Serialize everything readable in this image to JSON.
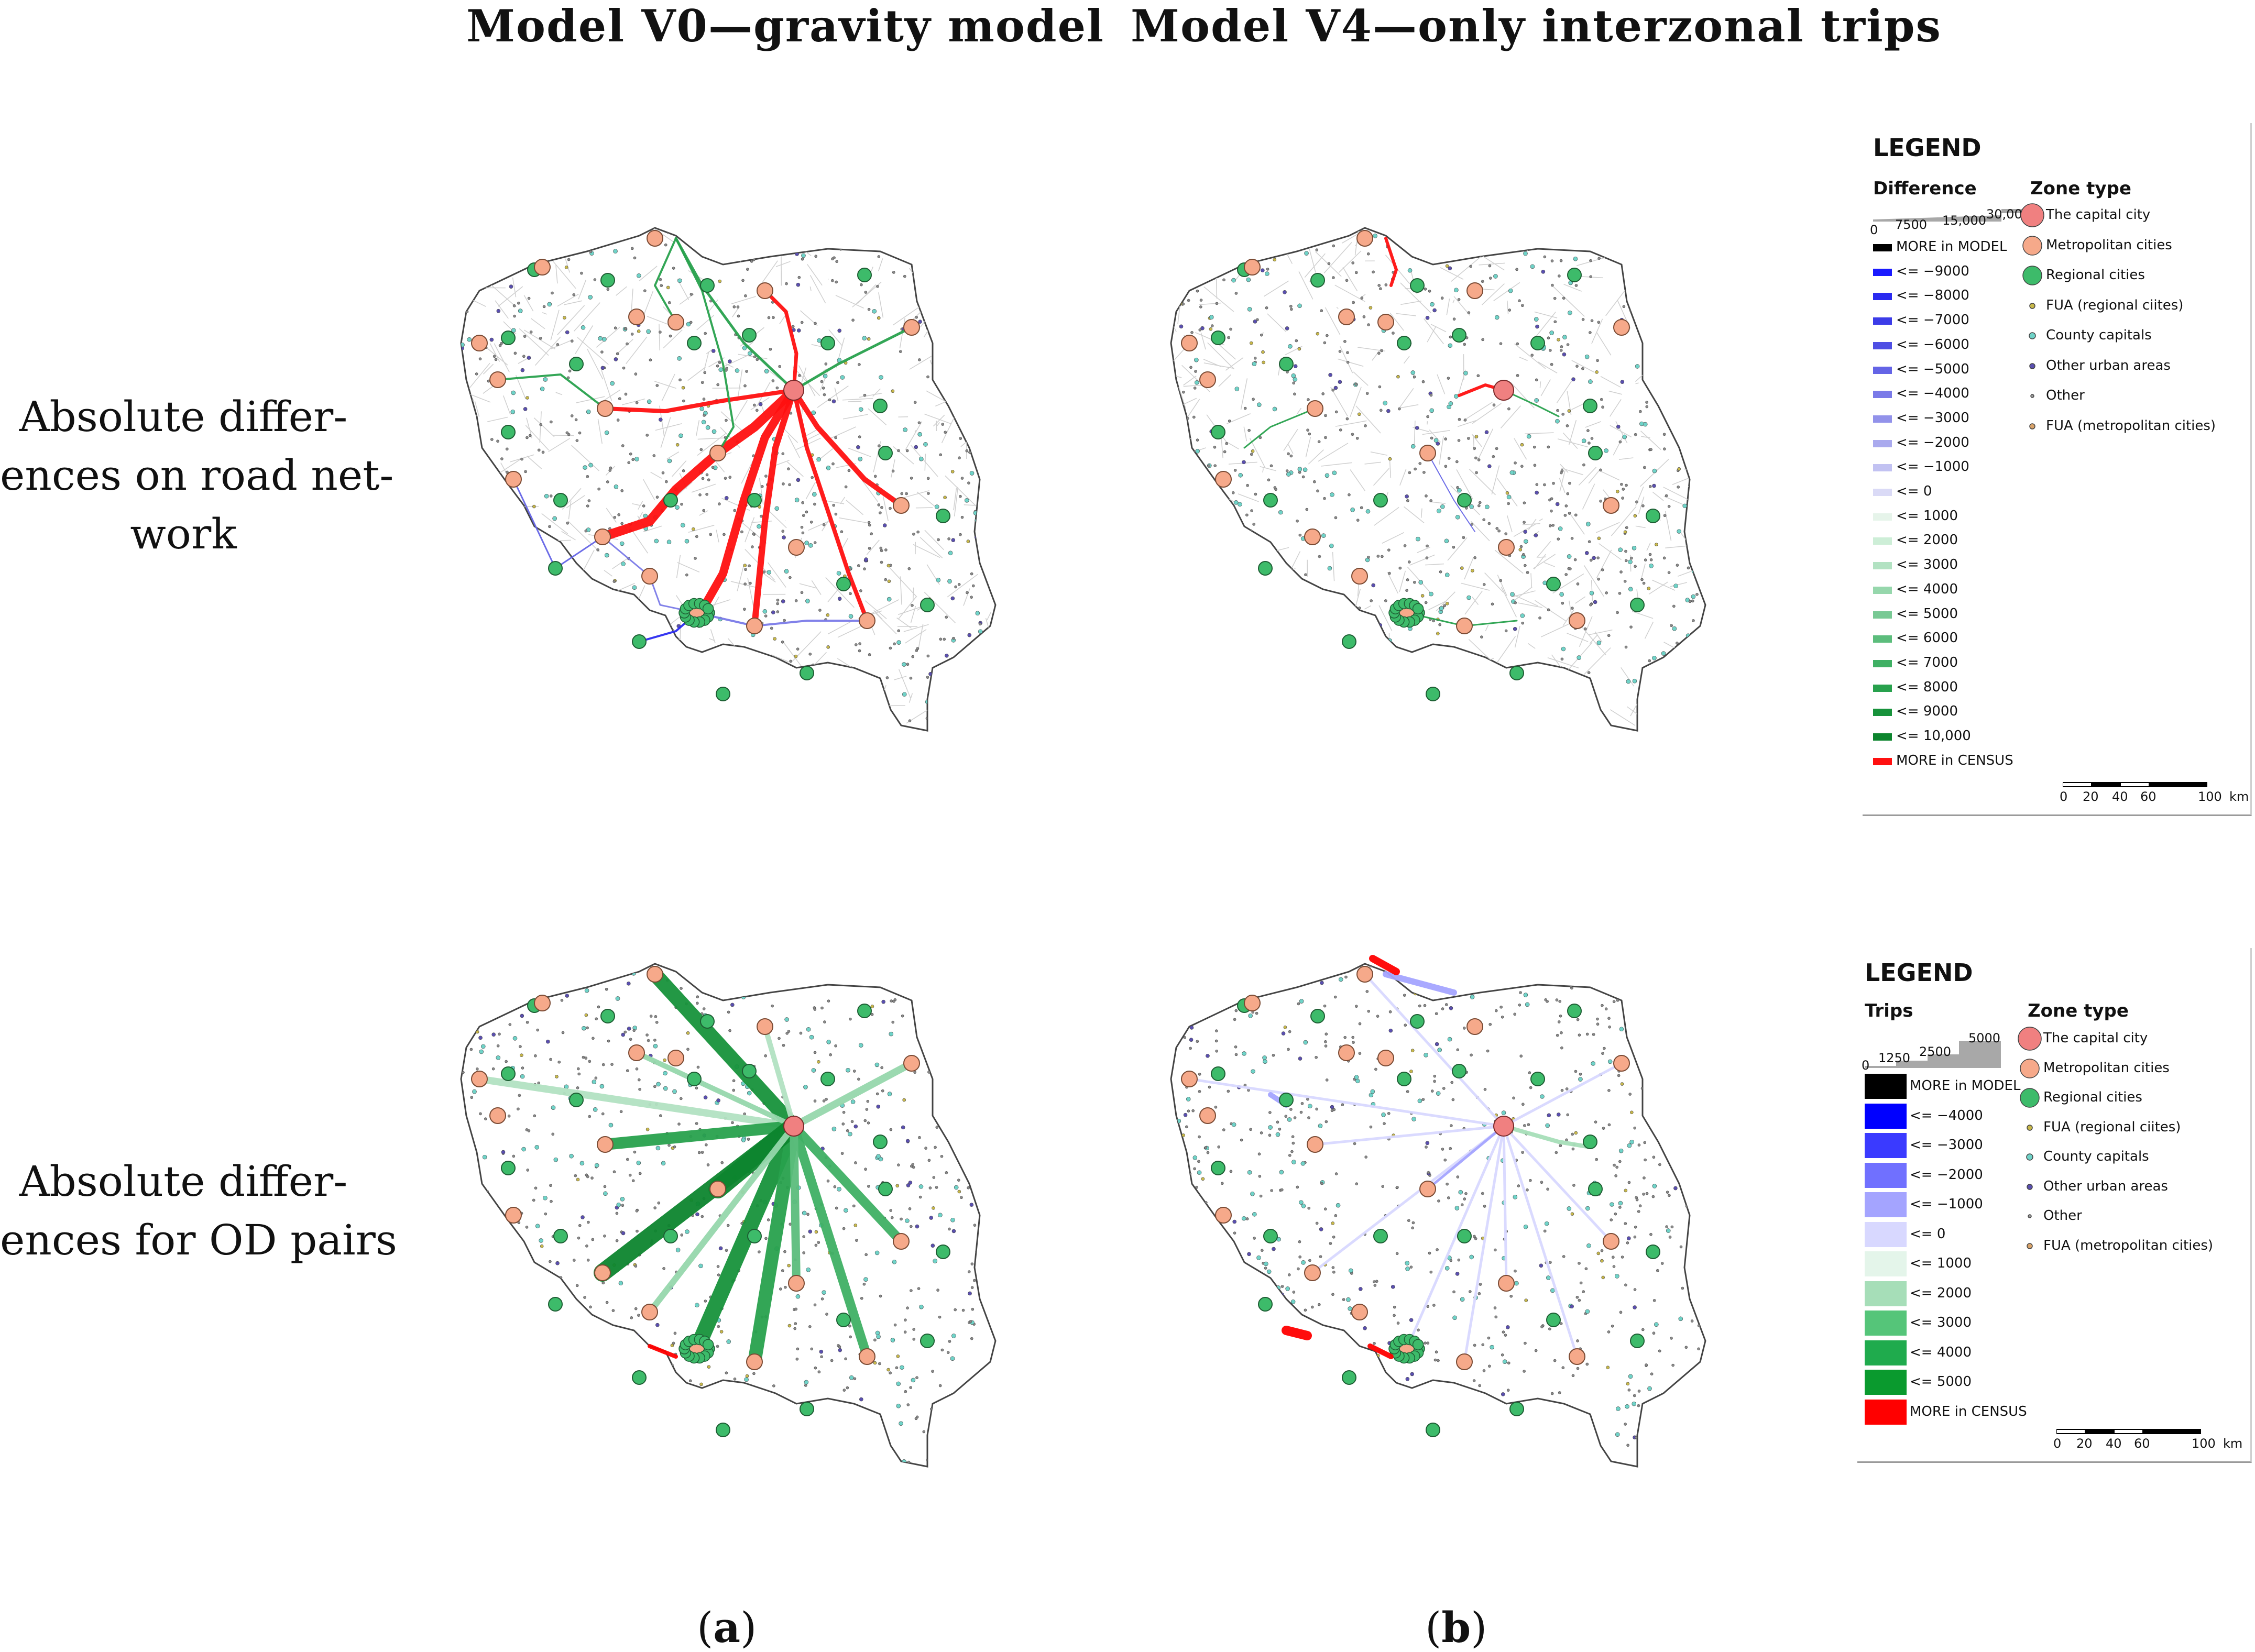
{
  "column_titles": [
    "Model V0—gravity model",
    "Model V4—only interzonal trips"
  ],
  "row_labels": [
    [
      "Absolute differ-",
      "ences on road net-",
      "work"
    ],
    [
      "Absolute differ-",
      "ences for OD pairs"
    ]
  ],
  "captions": {
    "a": "a",
    "b": "b"
  },
  "legend_top": {
    "title": "LEGEND",
    "difference_header": "Difference",
    "scale_ticks": [
      "0",
      "7500",
      "15,000",
      "30,000"
    ],
    "classes": [
      "MORE in MODEL",
      "<= −9000",
      "<= −8000",
      "<= −7000",
      "<= −6000",
      "<= −5000",
      "<= −4000",
      "<= −3000",
      "<= −2000",
      "<= −1000",
      "<= 0",
      "<= 1000",
      "<= 2000",
      "<= 3000",
      "<= 4000",
      "<= 5000",
      "<= 6000",
      "<= 7000",
      "<= 8000",
      "<= 9000",
      "<= 10,000",
      "MORE in CENSUS"
    ],
    "class_colors": [
      "#000000",
      "#1a1aff",
      "#2b2bf0",
      "#3c3ce8",
      "#4f4fe4",
      "#6464e6",
      "#7a7ae8",
      "#9292ea",
      "#aaaaee",
      "#c2c2f2",
      "#dadaf6",
      "#e6f4ea",
      "#cdeed7",
      "#b2e2c2",
      "#96d7ac",
      "#78c994",
      "#5cbd7c",
      "#3fb064",
      "#28a14d",
      "#17923b",
      "#0d852e",
      "#ff1010"
    ],
    "zone_header": "Zone type",
    "scale_bar": [
      "0",
      "20",
      "40",
      "60",
      "100",
      "km"
    ]
  },
  "legend_bottom": {
    "title": "LEGEND",
    "trips_header": "Trips",
    "scale_ticks": [
      "0",
      "1250",
      "2500",
      "5000"
    ],
    "classes": [
      "MORE in MODEL",
      "<= −4000",
      "<= −3000",
      "<= −2000",
      "<= −1000",
      "<= 0",
      "<= 1000",
      "<= 2000",
      "<= 3000",
      "<= 4000",
      "<= 5000",
      "MORE in CENSUS"
    ],
    "class_colors": [
      "#000000",
      "#0000ff",
      "#3a3aff",
      "#7070ff",
      "#a4a4ff",
      "#d8d8ff",
      "#e4f5ea",
      "#a6deb8",
      "#55c579",
      "#1fab4d",
      "#0a9a2e",
      "#ff0000"
    ],
    "zone_header": "Zone type",
    "scale_bar": [
      "0",
      "20",
      "40",
      "60",
      "100",
      "km"
    ]
  },
  "zone_types": [
    {
      "label": "The capital city",
      "color": "#f08080"
    },
    {
      "label": "Metropolitan cities",
      "color": "#f6a98a"
    },
    {
      "label": "Regional cities",
      "color": "#3dbb6a"
    },
    {
      "label": "FUA (regional ciites)",
      "color": "#c8b84a"
    },
    {
      "label": "County capitals",
      "color": "#6fd3c8"
    },
    {
      "label": "Other urban areas",
      "color": "#5a4fb0"
    },
    {
      "label": "Other",
      "color": "#999999"
    },
    {
      "label": "FUA (metropolitan cities)",
      "color": "#d9a36a"
    }
  ]
}
